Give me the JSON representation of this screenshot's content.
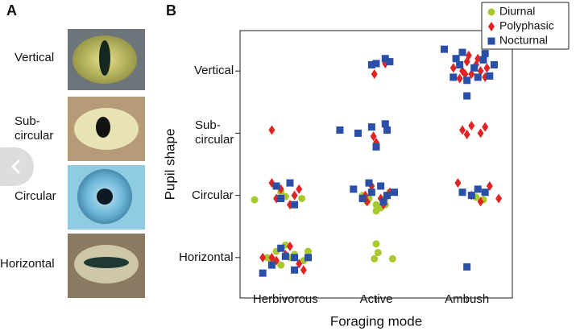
{
  "panel_a": {
    "label": "A",
    "rows": [
      "Vertical",
      "Sub-\ncircular",
      "Circular",
      "Horizontal"
    ]
  },
  "chart_data": {
    "type": "scatter",
    "panel_label": "B",
    "xlabel": "Foraging mode",
    "ylabel": "Pupil shape",
    "xlim": [
      0.5,
      3.5
    ],
    "ylim": [
      0.35,
      4.65
    ],
    "xticks": [
      {
        "value": 1,
        "label": "Herbivorous"
      },
      {
        "value": 2,
        "label": "Active"
      },
      {
        "value": 3,
        "label": "Ambush"
      }
    ],
    "yticks": [
      {
        "value": 1,
        "label": "Horizontal"
      },
      {
        "value": 2,
        "label": "Circular"
      },
      {
        "value": 3,
        "label": "Sub-\ncircular"
      },
      {
        "value": 4,
        "label": "Vertical"
      }
    ],
    "grid": false,
    "legend": "upper right",
    "series": [
      {
        "name": "Diurnal",
        "color": "#a8c92c",
        "marker": "circle",
        "x": [
          0.66,
          1.0,
          1.18,
          0.95,
          0.9,
          1.05,
          1.2,
          0.85,
          1.0,
          1.25,
          0.95,
          1.1,
          0.8,
          1.9,
          2.0,
          2.1,
          1.95,
          2.05,
          1.85,
          2.15,
          2.0,
          2.1,
          1.92,
          2.0,
          2.02,
          2.18,
          1.98,
          3.1,
          3.18
        ],
        "y": [
          1.93,
          1.98,
          1.95,
          2.05,
          1.1,
          1.0,
          0.95,
          0.95,
          1.2,
          1.1,
          0.88,
          1.05,
          1.0,
          1.9,
          1.85,
          1.95,
          2.05,
          1.8,
          2.0,
          2.05,
          1.75,
          1.85,
          1.95,
          1.22,
          1.08,
          0.98,
          0.98,
          1.97,
          1.93
        ]
      },
      {
        "name": "Polyphasic",
        "color": "#e02424",
        "marker": "diamond",
        "x": [
          0.85,
          0.85,
          0.95,
          1.1,
          0.9,
          1.05,
          1.15,
          0.75,
          0.9,
          1.0,
          1.15,
          1.2,
          0.85,
          1.05,
          1.98,
          2.1,
          1.97,
          2.0,
          1.88,
          1.95,
          2.05,
          2.15,
          1.9,
          2.08,
          2.85,
          2.95,
          3.0,
          3.05,
          3.1,
          3.15,
          3.2,
          2.92,
          3.02,
          3.12,
          3.22,
          2.98,
          2.95,
          3.05,
          3.15,
          3.2,
          3.0,
          2.9,
          3.05,
          3.15,
          3.25,
          3.35
        ],
        "y": [
          3.05,
          2.2,
          2.1,
          2.0,
          1.95,
          1.85,
          2.1,
          1.0,
          0.95,
          1.05,
          0.9,
          0.8,
          1.0,
          1.18,
          3.95,
          4.12,
          2.95,
          2.85,
          2.0,
          2.15,
          1.95,
          2.05,
          1.9,
          1.85,
          4.05,
          4.0,
          4.15,
          3.95,
          4.1,
          4.0,
          3.9,
          3.88,
          4.25,
          4.2,
          4.05,
          3.95,
          3.05,
          3.12,
          3.0,
          3.1,
          2.98,
          2.2,
          2.0,
          1.9,
          2.15,
          1.95
        ]
      },
      {
        "name": "Nocturnal",
        "color": "#2a4fa8",
        "marker": "square",
        "x": [
          1.6,
          0.9,
          1.05,
          0.95,
          1.1,
          0.95,
          1.1,
          0.85,
          1.25,
          0.75,
          1.1,
          1.0,
          1.95,
          2.1,
          2.15,
          2.0,
          1.8,
          1.95,
          2.1,
          2.12,
          2.0,
          1.75,
          1.85,
          1.95,
          2.05,
          2.12,
          2.2,
          1.92,
          2.08,
          2.75,
          2.85,
          2.92,
          3.0,
          3.08,
          3.18,
          3.25,
          3.3,
          2.88,
          3.12,
          3.2,
          2.95,
          3.0,
          2.95,
          3.05,
          3.2,
          3.12,
          3.0
        ],
        "y": [
          3.05,
          2.15,
          2.2,
          1.95,
          1.85,
          1.15,
          1.0,
          0.88,
          1.0,
          0.75,
          0.8,
          1.02,
          4.1,
          4.2,
          4.15,
          4.12,
          3.0,
          3.1,
          3.15,
          3.05,
          2.78,
          2.1,
          1.95,
          2.05,
          2.15,
          2.0,
          2.05,
          2.2,
          1.9,
          4.35,
          3.9,
          4.1,
          3.85,
          4.05,
          4.18,
          3.92,
          4.1,
          4.2,
          3.9,
          4.28,
          4.3,
          3.6,
          2.05,
          2.0,
          2.05,
          2.1,
          0.85
        ]
      }
    ]
  }
}
